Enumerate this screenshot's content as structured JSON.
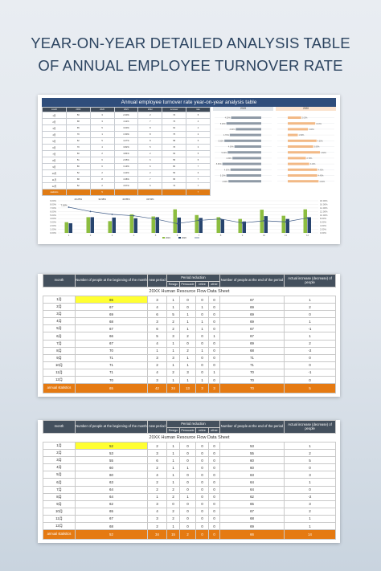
{
  "page_title": "YEAR-ON-YEAR DETAILED ANALYSIS TABLE\nOF ANNUAL EMPLOYEE TURNOVER RATE",
  "summary": {
    "title": "Annual employee turnover rate year-on-year analysis table",
    "headers": [
      "month",
      "2019",
      "2020",
      "2021",
      "2022",
      "turnover",
      "rate"
    ],
    "rows": [
      [
        "1月",
        "50",
        "3",
        "2.00%",
        "2",
        "72",
        "5"
      ],
      [
        "2月",
        "68",
        "3",
        "4.11%",
        "7",
        "73",
        "4"
      ],
      [
        "3月",
        "65",
        "5",
        "3.00%",
        "8",
        "62",
        "4"
      ],
      [
        "4月",
        "70",
        "1",
        "1.50%",
        "8",
        "75",
        "2"
      ],
      [
        "5月",
        "62",
        "5",
        "4.27%",
        "8",
        "58",
        "5"
      ],
      [
        "6月",
        "70",
        "4",
        "3.82%",
        "5",
        "76",
        "3"
      ],
      [
        "7月",
        "60",
        "2",
        "4.84%",
        "2",
        "63",
        "5"
      ],
      [
        "8月",
        "51",
        "6",
        "2.65%",
        "6",
        "55",
        "5"
      ],
      [
        "9月",
        "80",
        "6",
        "3.19%",
        "6",
        "80",
        "7"
      ],
      [
        "10月",
        "52",
        "2",
        "4.43%",
        "2",
        "56",
        "6"
      ],
      [
        "11月",
        "68",
        "8",
        "4.38%",
        "7",
        "65",
        "7"
      ],
      [
        "12月",
        "52",
        "2",
        "4.57%",
        "5",
        "73",
        "7"
      ]
    ],
    "total_row": [
      "statistics",
      "",
      "5",
      "",
      "",
      "",
      "7"
    ],
    "notes": [
      "43.25%",
      "32.98%",
      "40.85%",
      "43.53%"
    ],
    "left_bars_label": "2019",
    "right_bars_label": "2020",
    "left_bars": [
      0.045,
      0.052,
      0.038,
      0.047,
      0.055,
      0.04,
      0.05,
      0.043,
      0.058,
      0.046,
      0.052,
      0.049
    ],
    "right_bars": [
      0.02,
      0.041,
      0.03,
      0.015,
      0.043,
      0.038,
      0.048,
      0.027,
      0.032,
      0.044,
      0.044,
      0.046
    ],
    "colors": {
      "header_band": "#2f4d7b",
      "left_bar": "#8f9aa6",
      "right_bar": "#f2b986",
      "total": "#e07b14"
    }
  },
  "chart_data": {
    "type": "bar",
    "categories": [
      "1月",
      "2月",
      "3月",
      "4月",
      "5月",
      "6月",
      "7月",
      "8月",
      "9月",
      "10月",
      "11月",
      "12月"
    ],
    "x_ticks": [
      "1",
      "2",
      "3",
      "4",
      "5",
      "6",
      "7",
      "8",
      "9",
      "10",
      "11",
      "12"
    ],
    "series": [
      {
        "name": "2019",
        "color": "#8cbd3f",
        "values": [
          3.0,
          4.4,
          3.3,
          5.2,
          4.6,
          6.6,
          5.0,
          4.4,
          3.9,
          6.5,
          4.8,
          6.6
        ]
      },
      {
        "name": "2020",
        "color": "#27446e",
        "values": [
          2.7,
          4.4,
          4.3,
          4.1,
          4.4,
          4.3,
          4.2,
          3.8,
          3.2,
          4.7,
          3.9,
          4.4
        ]
      },
      {
        "name": "",
        "color": "#3d5a86",
        "type": "line",
        "values": [
          7.2,
          6.0,
          5.2,
          4.8,
          3.9,
          2.6,
          3.5,
          3.9,
          2.8,
          3.4,
          3.1,
          4.2
        ]
      }
    ],
    "left_axis_ticks": [
      "9.00%",
      "8.00%",
      "7.00%",
      "6.00%",
      "5.00%",
      "4.00%",
      "3.00%",
      "2.00%",
      "1.00%",
      "0.00%"
    ],
    "right_axis_ticks": [
      "18.00%",
      "16.00%",
      "14.00%",
      "12.00%",
      "10.00%",
      "8.00%",
      "6.00%",
      "4.00%",
      "2.00%",
      "0.00%"
    ],
    "ylim": [
      0,
      9
    ],
    "first_point_label": "7.16%",
    "legend": [
      "2019",
      "2020"
    ]
  },
  "sheet1": {
    "title": "20XX Human Resource Flow Data Sheet",
    "headers": {
      "month": "month",
      "begin": "Number of people at the beginning of the month",
      "new": "new period",
      "reduction": "Period reduction",
      "resign": "Resign",
      "persuade": "Persuade",
      "retire": "retire",
      "other": "other",
      "end": "Number of people at the end of the period",
      "increase": "Actual increase (decrease) of people"
    },
    "rows": [
      [
        "1月",
        "65",
        "3",
        "1",
        "0",
        "0",
        "0",
        "67",
        "1"
      ],
      [
        "2月",
        "67",
        "4",
        "1",
        "0",
        "1",
        "0",
        "69",
        "2"
      ],
      [
        "3月",
        "69",
        "6",
        "5",
        "1",
        "0",
        "0",
        "69",
        "0"
      ],
      [
        "4月",
        "68",
        "3",
        "2",
        "1",
        "1",
        "0",
        "69",
        "1"
      ],
      [
        "5月",
        "67",
        "6",
        "2",
        "1",
        "1",
        "0",
        "67",
        "-1"
      ],
      [
        "6月",
        "66",
        "5",
        "3",
        "2",
        "0",
        "1",
        "67",
        "1"
      ],
      [
        "7月",
        "67",
        "4",
        "1",
        "0",
        "0",
        "0",
        "69",
        "2"
      ],
      [
        "8月",
        "70",
        "1",
        "1",
        "2",
        "1",
        "0",
        "68",
        "-2"
      ],
      [
        "9月",
        "71",
        "3",
        "3",
        "1",
        "0",
        "0",
        "71",
        "0"
      ],
      [
        "10月",
        "71",
        "2",
        "1",
        "1",
        "0",
        "0",
        "71",
        "0"
      ],
      [
        "11月",
        "71",
        "4",
        "2",
        "3",
        "0",
        "1",
        "70",
        "-1"
      ],
      [
        "12月",
        "70",
        "3",
        "1",
        "1",
        "1",
        "0",
        "70",
        "0"
      ]
    ],
    "total": [
      "annual statistics",
      "65",
      "42",
      "24",
      "13",
      "3",
      "3",
      "70",
      "5"
    ]
  },
  "sheet2": {
    "title": "20XX Human Resource Flow Data Sheet",
    "headers": {
      "month": "month",
      "begin": "Number of people at the beginning of the month",
      "new": "new period",
      "reduction": "Period reduction",
      "resign": "Resign",
      "persuade": "Persuade",
      "retire": "retire",
      "other": "other",
      "end": "Number of people at the end of the period",
      "increase": "Actual increase (decrease) of people"
    },
    "rows": [
      [
        "1月",
        "52",
        "2",
        "1",
        "0",
        "0",
        "0",
        "53",
        "1"
      ],
      [
        "2月",
        "53",
        "3",
        "1",
        "0",
        "0",
        "0",
        "55",
        "2"
      ],
      [
        "3月",
        "55",
        "6",
        "1",
        "0",
        "0",
        "0",
        "60",
        "5"
      ],
      [
        "4月",
        "60",
        "2",
        "1",
        "1",
        "0",
        "0",
        "60",
        "0"
      ],
      [
        "5月",
        "60",
        "4",
        "1",
        "0",
        "0",
        "0",
        "63",
        "3"
      ],
      [
        "6月",
        "63",
        "2",
        "1",
        "0",
        "0",
        "0",
        "64",
        "1"
      ],
      [
        "7月",
        "64",
        "2",
        "2",
        "0",
        "0",
        "0",
        "64",
        "0"
      ],
      [
        "8月",
        "64",
        "1",
        "2",
        "1",
        "0",
        "0",
        "62",
        "-2"
      ],
      [
        "9月",
        "62",
        "3",
        "0",
        "0",
        "0",
        "0",
        "65",
        "3"
      ],
      [
        "10月",
        "65",
        "4",
        "2",
        "0",
        "0",
        "0",
        "67",
        "2"
      ],
      [
        "11月",
        "67",
        "3",
        "2",
        "0",
        "0",
        "0",
        "68",
        "1"
      ],
      [
        "12月",
        "68",
        "2",
        "1",
        "0",
        "0",
        "0",
        "69",
        "1"
      ]
    ],
    "total": [
      "annual statistics",
      "52",
      "34",
      "15",
      "2",
      "0",
      "0",
      "66",
      "14"
    ]
  }
}
